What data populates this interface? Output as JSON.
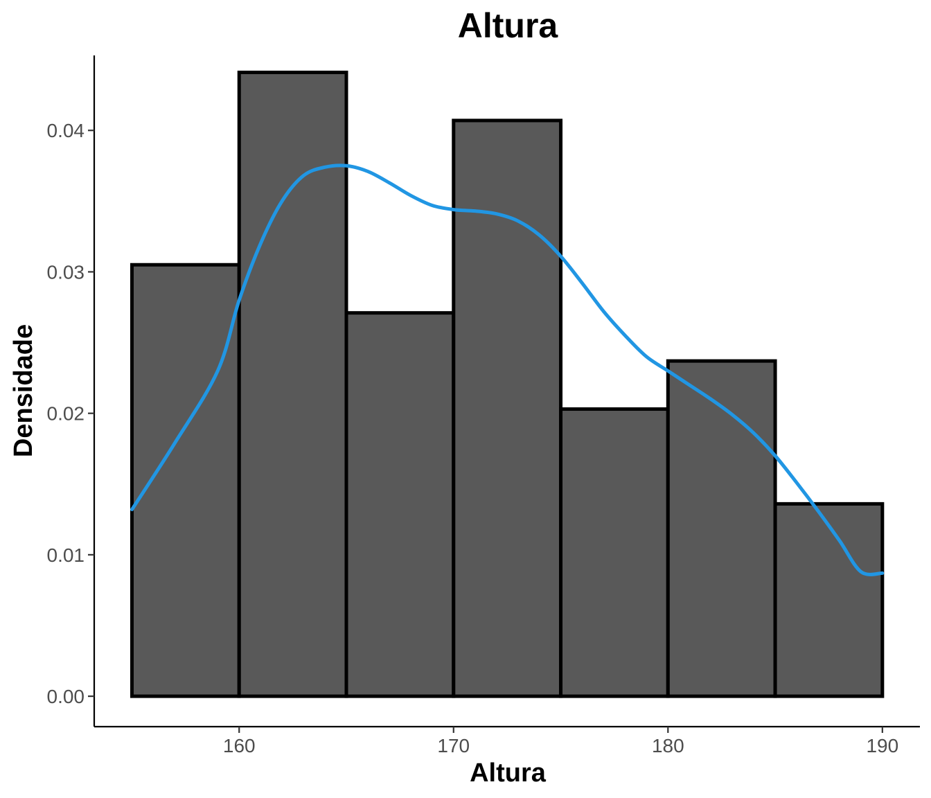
{
  "chart_data": {
    "type": "bar",
    "subtype": "histogram-with-density",
    "title": "Altura",
    "xlabel": "Altura",
    "ylabel": "Densidade",
    "xlim": [
      153.24,
      191.75
    ],
    "ylim": [
      -0.00215,
      0.0453
    ],
    "x_ticks": [
      160,
      170,
      180,
      190
    ],
    "x_tick_labels": [
      "160",
      "170",
      "180",
      "190"
    ],
    "y_ticks": [
      0.0,
      0.01,
      0.02,
      0.03,
      0.04
    ],
    "y_tick_labels": [
      "0.00",
      "0.01",
      "0.02",
      "0.03",
      "0.04"
    ],
    "bins": [
      {
        "x0": 155,
        "x1": 160,
        "density": 0.0305
      },
      {
        "x0": 160,
        "x1": 165,
        "density": 0.0441
      },
      {
        "x0": 165,
        "x1": 170,
        "density": 0.0271
      },
      {
        "x0": 170,
        "x1": 175,
        "density": 0.0407
      },
      {
        "x0": 175,
        "x1": 180,
        "density": 0.0203
      },
      {
        "x0": 180,
        "x1": 185,
        "density": 0.0237
      },
      {
        "x0": 185,
        "x1": 190,
        "density": 0.0136
      }
    ],
    "density_curve": {
      "x": [
        155,
        157,
        159,
        160,
        161,
        162,
        163,
        164,
        165,
        166,
        167,
        168,
        169,
        170,
        171,
        172,
        173,
        174,
        175,
        176,
        177,
        178,
        179,
        180,
        181,
        182,
        183,
        184,
        185,
        186,
        187,
        188,
        189,
        190
      ],
      "y": [
        0.0132,
        0.0179,
        0.023,
        0.028,
        0.032,
        0.035,
        0.0368,
        0.0374,
        0.0375,
        0.0371,
        0.0363,
        0.0354,
        0.0347,
        0.0344,
        0.0343,
        0.0341,
        0.0336,
        0.0326,
        0.0311,
        0.0292,
        0.0272,
        0.0255,
        0.024,
        0.023,
        0.022,
        0.021,
        0.0199,
        0.0186,
        0.017,
        0.0151,
        0.0131,
        0.011,
        0.0088,
        0.0087
      ]
    },
    "grid": false,
    "legend": "none",
    "colors": {
      "bar_fill": "#595959",
      "bar_stroke": "#000000",
      "density_line": "#2196e3"
    }
  }
}
